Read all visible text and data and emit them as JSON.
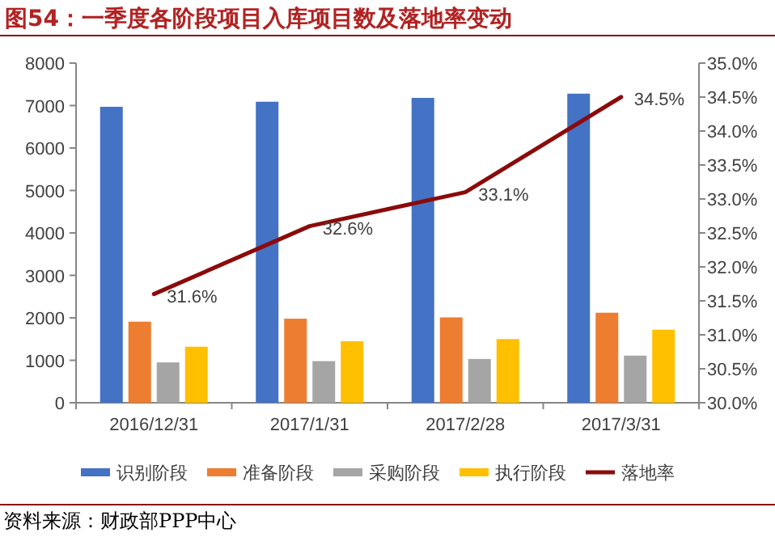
{
  "chart_data": {
    "type": "bar",
    "title": "图54：一季度各阶段项目入库项目数及落地率变动",
    "categories": [
      "2016/12/31",
      "2017/1/31",
      "2017/2/28",
      "2017/3/31"
    ],
    "series": [
      {
        "name": "识别阶段",
        "color": "#4472c4",
        "values": [
          6970,
          7090,
          7180,
          7280
        ]
      },
      {
        "name": "准备阶段",
        "color": "#ed7d31",
        "values": [
          1910,
          1980,
          2010,
          2120
        ]
      },
      {
        "name": "采购阶段",
        "color": "#a5a5a5",
        "values": [
          950,
          980,
          1030,
          1110
        ]
      },
      {
        "name": "执行阶段",
        "color": "#ffc000",
        "values": [
          1320,
          1450,
          1500,
          1720
        ]
      },
      {
        "name": "落地率",
        "color": "#8b0a0a",
        "type": "line",
        "axis": "y2",
        "values": [
          31.6,
          32.6,
          33.1,
          34.5
        ],
        "value_labels": [
          "31.6%",
          "32.6%",
          "33.1%",
          "34.5%"
        ]
      }
    ],
    "ylim": [
      0,
      8000
    ],
    "yticks": [
      0,
      1000,
      2000,
      3000,
      4000,
      5000,
      6000,
      7000,
      8000
    ],
    "y2lim": [
      30,
      35
    ],
    "y2ticks": [
      {
        "value": 30,
        "label": "30.0%"
      },
      {
        "value": 30.5,
        "label": "30.5%"
      },
      {
        "value": 31,
        "label": "31.0%"
      },
      {
        "value": 31.5,
        "label": "31.5%"
      },
      {
        "value": 32,
        "label": "32.0%"
      },
      {
        "value": 32.5,
        "label": "32.5%"
      },
      {
        "value": 33,
        "label": "33.0%"
      },
      {
        "value": 33.5,
        "label": "33.5%"
      },
      {
        "value": 34,
        "label": "34.0%"
      },
      {
        "value": 34.5,
        "label": "34.5%"
      },
      {
        "value": 35,
        "label": "35.0%"
      }
    ],
    "legend": "bottom",
    "annotations": [
      "资料来源：财政部PPP中心"
    ]
  }
}
